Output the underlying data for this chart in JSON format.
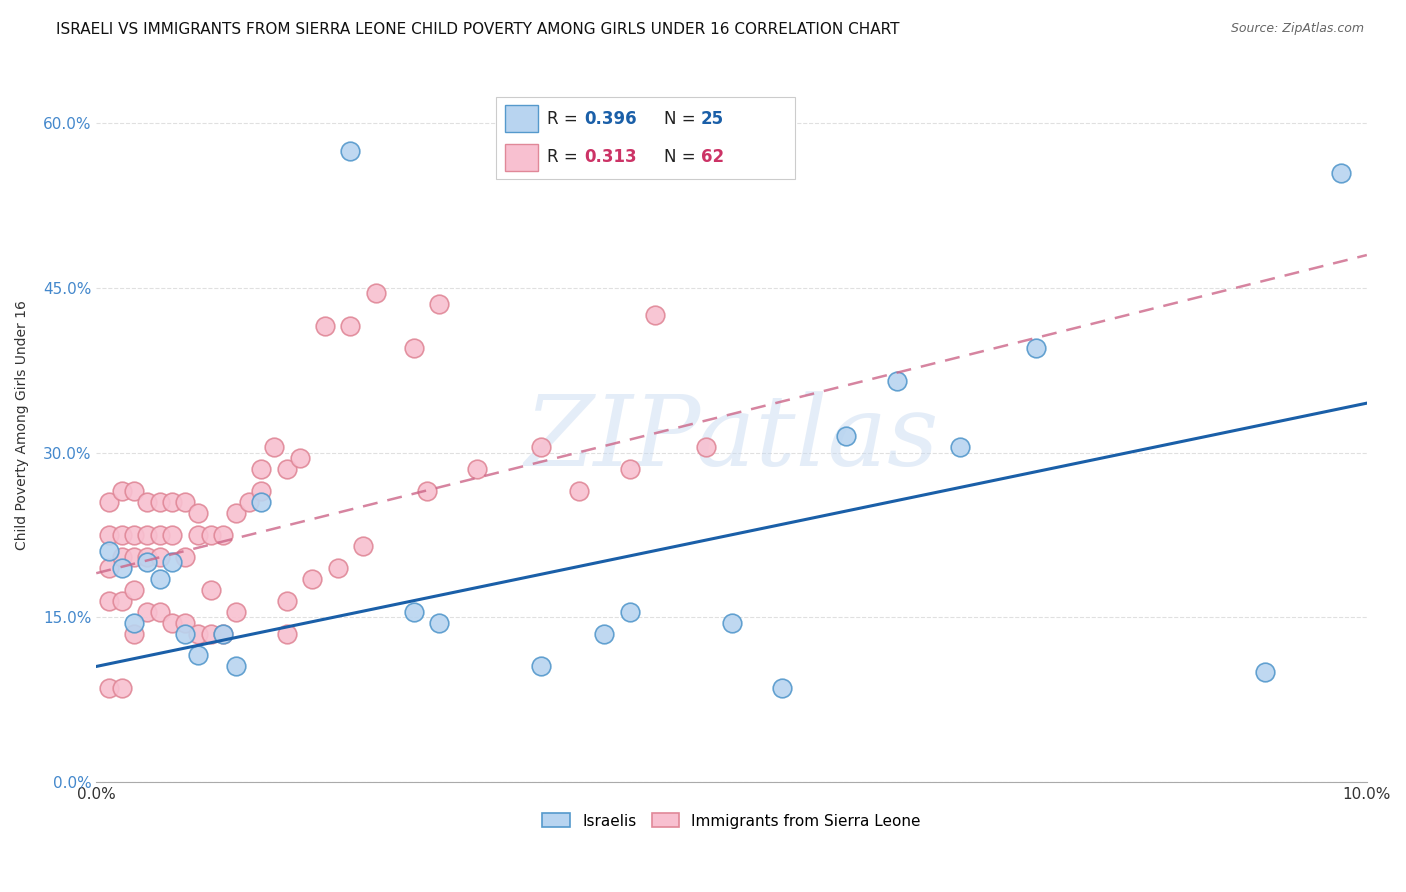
{
  "title": "ISRAELI VS IMMIGRANTS FROM SIERRA LEONE CHILD POVERTY AMONG GIRLS UNDER 16 CORRELATION CHART",
  "source": "Source: ZipAtlas.com",
  "ylabel": "Child Poverty Among Girls Under 16",
  "xlim": [
    0.0,
    0.1
  ],
  "ylim": [
    0.0,
    0.65
  ],
  "xticks": [
    0.0,
    0.1
  ],
  "xticklabels": [
    "0.0%",
    "10.0%"
  ],
  "yticks": [
    0.0,
    0.15,
    0.3,
    0.45,
    0.6
  ],
  "yticklabels": [
    "0.0%",
    "15.0%",
    "30.0%",
    "45.0%",
    "60.0%"
  ],
  "israeli_R": "0.396",
  "israeli_N": "25",
  "sierraleone_R": "0.313",
  "sierraleone_N": "62",
  "israeli_fill_color": "#b8d4f0",
  "israeli_edge_color": "#5599cc",
  "sierraleone_fill_color": "#f8c0d0",
  "sierraleone_edge_color": "#e08898",
  "israeli_line_color": "#1a5fa8",
  "sierraleone_line_color": "#cc6688",
  "sierraleone_stat_color": "#cc3366",
  "ytick_color": "#4488cc",
  "watermark_text": "ZIPatlas",
  "bg_color": "#ffffff",
  "grid_color": "#e0e0e0",
  "isr_x": [
    0.001,
    0.002,
    0.003,
    0.004,
    0.005,
    0.006,
    0.007,
    0.008,
    0.01,
    0.011,
    0.013,
    0.025,
    0.027,
    0.04,
    0.042,
    0.05,
    0.054,
    0.059,
    0.063,
    0.068,
    0.074,
    0.092,
    0.098,
    0.035,
    0.02
  ],
  "isr_y": [
    0.21,
    0.195,
    0.145,
    0.2,
    0.185,
    0.2,
    0.135,
    0.115,
    0.135,
    0.105,
    0.255,
    0.155,
    0.145,
    0.135,
    0.155,
    0.145,
    0.085,
    0.315,
    0.365,
    0.305,
    0.395,
    0.1,
    0.555,
    0.105,
    0.575
  ],
  "sl_x": [
    0.001,
    0.001,
    0.001,
    0.001,
    0.001,
    0.002,
    0.002,
    0.002,
    0.002,
    0.002,
    0.003,
    0.003,
    0.003,
    0.003,
    0.003,
    0.004,
    0.004,
    0.004,
    0.004,
    0.005,
    0.005,
    0.005,
    0.005,
    0.006,
    0.006,
    0.006,
    0.007,
    0.007,
    0.007,
    0.008,
    0.008,
    0.008,
    0.009,
    0.009,
    0.009,
    0.01,
    0.01,
    0.011,
    0.011,
    0.012,
    0.013,
    0.013,
    0.014,
    0.015,
    0.015,
    0.016,
    0.018,
    0.02,
    0.022,
    0.025,
    0.026,
    0.027,
    0.03,
    0.035,
    0.038,
    0.042,
    0.044,
    0.048,
    0.015,
    0.017,
    0.019,
    0.021
  ],
  "sl_y": [
    0.255,
    0.225,
    0.195,
    0.165,
    0.085,
    0.265,
    0.225,
    0.205,
    0.165,
    0.085,
    0.265,
    0.225,
    0.205,
    0.175,
    0.135,
    0.255,
    0.225,
    0.205,
    0.155,
    0.255,
    0.225,
    0.205,
    0.155,
    0.255,
    0.225,
    0.145,
    0.255,
    0.205,
    0.145,
    0.245,
    0.225,
    0.135,
    0.225,
    0.175,
    0.135,
    0.225,
    0.135,
    0.245,
    0.155,
    0.255,
    0.285,
    0.265,
    0.305,
    0.285,
    0.135,
    0.295,
    0.415,
    0.415,
    0.445,
    0.395,
    0.265,
    0.435,
    0.285,
    0.305,
    0.265,
    0.285,
    0.425,
    0.305,
    0.165,
    0.185,
    0.195,
    0.215
  ],
  "isr_line_x": [
    0.0,
    0.1
  ],
  "isr_line_y": [
    0.105,
    0.345
  ],
  "sl_line_x": [
    0.0,
    0.1
  ],
  "sl_line_y": [
    0.19,
    0.48
  ],
  "title_fontsize": 11,
  "tick_fontsize": 11,
  "legend_fontsize": 12
}
